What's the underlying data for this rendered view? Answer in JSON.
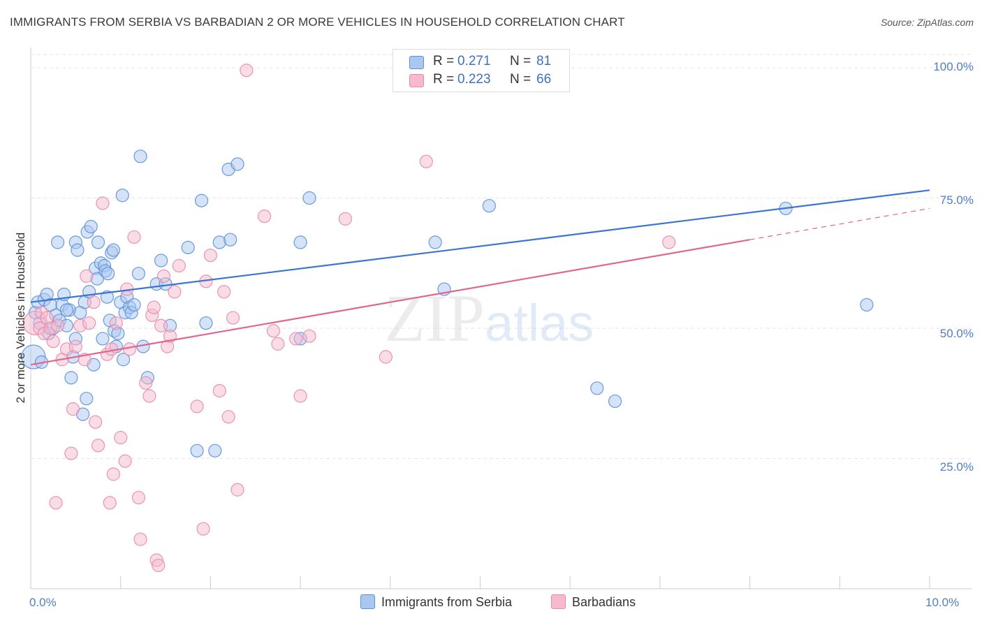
{
  "header": {
    "title": "IMMIGRANTS FROM SERBIA VS BARBADIAN 2 OR MORE VEHICLES IN HOUSEHOLD CORRELATION CHART",
    "source": "Source: ZipAtlas.com"
  },
  "watermark": {
    "zip": "ZIP",
    "atlas": "atlas"
  },
  "colors": {
    "blue_fill": "#aac8ef",
    "blue_stroke": "#5b8fd9",
    "blue_line": "#3c75d1",
    "pink_fill": "#f6b9cd",
    "pink_stroke": "#e889a8",
    "pink_line": "#e06590",
    "tick_text": "#4f7ec7",
    "grid": "#e6e6e6"
  },
  "legend_top": {
    "rows": [
      {
        "r_label": "R =",
        "r_value": "0.271",
        "n_label": "N =",
        "n_value": "81"
      },
      {
        "r_label": "R =",
        "r_value": "0.223",
        "n_label": "N =",
        "n_value": "66"
      }
    ]
  },
  "legend_bottom": {
    "series1": "Immigrants from Serbia",
    "series2": "Barbadians"
  },
  "chart_data": {
    "type": "scatter",
    "title": "IMMIGRANTS FROM SERBIA VS BARBADIAN 2 OR MORE VEHICLES IN HOUSEHOLD CORRELATION CHART",
    "xlabel": "",
    "ylabel": "2 or more Vehicles in Household",
    "xlim": [
      0,
      10
    ],
    "ylim": [
      0,
      105
    ],
    "x_tick_labels": {
      "left": "0.0%",
      "right": "10.0%"
    },
    "y_ticks": [
      {
        "value": 100,
        "label": "100.0%"
      },
      {
        "value": 75,
        "label": "75.0%"
      },
      {
        "value": 50,
        "label": "50.0%"
      },
      {
        "value": 25,
        "label": "25.0%"
      }
    ],
    "x_tick_marks": [
      0,
      1,
      2,
      3,
      4,
      5,
      6,
      7,
      8,
      9,
      10
    ],
    "grid": true,
    "legend": "top-center",
    "series": [
      {
        "name": "Immigrants from Serbia",
        "r": 0.271,
        "n": 81,
        "trend": {
          "x0": 0,
          "y0": 55,
          "x1": 10,
          "y1": 76.5,
          "dashed_from": null
        },
        "points": [
          [
            0.03,
            44.5,
            "L"
          ],
          [
            0.05,
            53
          ],
          [
            0.08,
            55
          ],
          [
            0.12,
            43.5
          ],
          [
            0.15,
            55.5
          ],
          [
            0.18,
            56.5
          ],
          [
            0.2,
            49
          ],
          [
            0.22,
            54.5
          ],
          [
            0.25,
            50
          ],
          [
            0.28,
            52.5
          ],
          [
            0.3,
            66.5
          ],
          [
            0.32,
            51.5
          ],
          [
            0.35,
            54.5
          ],
          [
            0.37,
            56.5
          ],
          [
            0.4,
            50.5
          ],
          [
            0.43,
            53.5
          ],
          [
            0.45,
            40.5
          ],
          [
            0.47,
            44.5
          ],
          [
            0.5,
            66.5
          ],
          [
            0.52,
            65
          ],
          [
            0.55,
            53
          ],
          [
            0.58,
            33.5
          ],
          [
            0.6,
            55
          ],
          [
            0.62,
            36.5
          ],
          [
            0.63,
            68.5
          ],
          [
            0.65,
            57
          ],
          [
            0.67,
            69.5
          ],
          [
            0.7,
            43
          ],
          [
            0.72,
            61.5
          ],
          [
            0.74,
            59.5
          ],
          [
            0.75,
            66.5
          ],
          [
            0.78,
            62.5
          ],
          [
            0.8,
            48
          ],
          [
            0.82,
            62
          ],
          [
            0.83,
            61
          ],
          [
            0.85,
            56
          ],
          [
            0.86,
            60.5
          ],
          [
            0.88,
            51.5
          ],
          [
            0.9,
            64.5
          ],
          [
            0.92,
            65
          ],
          [
            0.93,
            49.5
          ],
          [
            0.95,
            46.5
          ],
          [
            0.97,
            49
          ],
          [
            1.0,
            55
          ],
          [
            1.02,
            75.5
          ],
          [
            1.03,
            44
          ],
          [
            1.05,
            53
          ],
          [
            1.07,
            56
          ],
          [
            1.1,
            54
          ],
          [
            1.12,
            53
          ],
          [
            1.15,
            54.5
          ],
          [
            1.2,
            60.5
          ],
          [
            1.22,
            83
          ],
          [
            1.25,
            46.5
          ],
          [
            1.3,
            40.5
          ],
          [
            1.4,
            58.5
          ],
          [
            1.45,
            63
          ],
          [
            1.5,
            58.5
          ],
          [
            1.55,
            50.5
          ],
          [
            1.75,
            65.5
          ],
          [
            1.85,
            26.5
          ],
          [
            1.9,
            74.5
          ],
          [
            1.95,
            51
          ],
          [
            2.05,
            26.5
          ],
          [
            2.1,
            66.5
          ],
          [
            2.2,
            80.5
          ],
          [
            2.22,
            67
          ],
          [
            2.3,
            81.5
          ],
          [
            3.0,
            66.5
          ],
          [
            3.0,
            48
          ],
          [
            3.1,
            75
          ],
          [
            4.5,
            66.5
          ],
          [
            4.6,
            57.5
          ],
          [
            5.1,
            73.5
          ],
          [
            6.3,
            38.5
          ],
          [
            6.5,
            36
          ],
          [
            8.4,
            73
          ],
          [
            9.3,
            54.5
          ],
          [
            0.1,
            51
          ],
          [
            0.4,
            53.5
          ],
          [
            0.5,
            48
          ]
        ]
      },
      {
        "name": "Barbadians",
        "r": 0.223,
        "n": 66,
        "trend": {
          "x0": 0,
          "y0": 43,
          "x1": 10,
          "y1": 73,
          "dashed_from": 8.0
        },
        "points": [
          [
            0.05,
            51,
            "L"
          ],
          [
            0.1,
            50
          ],
          [
            0.12,
            53
          ],
          [
            0.15,
            49
          ],
          [
            0.18,
            52
          ],
          [
            0.22,
            50
          ],
          [
            0.25,
            47.5
          ],
          [
            0.28,
            16.5
          ],
          [
            0.3,
            50.5
          ],
          [
            0.35,
            44
          ],
          [
            0.4,
            46
          ],
          [
            0.45,
            26
          ],
          [
            0.47,
            34.5
          ],
          [
            0.5,
            46.5
          ],
          [
            0.55,
            50.5
          ],
          [
            0.6,
            44
          ],
          [
            0.62,
            60
          ],
          [
            0.65,
            51
          ],
          [
            0.7,
            55
          ],
          [
            0.72,
            32
          ],
          [
            0.75,
            27.5
          ],
          [
            0.8,
            74
          ],
          [
            0.85,
            45
          ],
          [
            0.88,
            16.5
          ],
          [
            0.9,
            46
          ],
          [
            0.92,
            22
          ],
          [
            0.95,
            51
          ],
          [
            1.0,
            29
          ],
          [
            1.05,
            24.5
          ],
          [
            1.07,
            57.5
          ],
          [
            1.1,
            46
          ],
          [
            1.15,
            67.5
          ],
          [
            1.2,
            17.5
          ],
          [
            1.22,
            9.5
          ],
          [
            1.28,
            39.5
          ],
          [
            1.32,
            37
          ],
          [
            1.35,
            52.5
          ],
          [
            1.37,
            54
          ],
          [
            1.4,
            5.5
          ],
          [
            1.42,
            4.5
          ],
          [
            1.45,
            50.5
          ],
          [
            1.48,
            60
          ],
          [
            1.52,
            46.5
          ],
          [
            1.55,
            48.5
          ],
          [
            1.6,
            57
          ],
          [
            1.65,
            62
          ],
          [
            1.85,
            35
          ],
          [
            1.92,
            11.5
          ],
          [
            1.95,
            59
          ],
          [
            2.0,
            64
          ],
          [
            2.1,
            38
          ],
          [
            2.15,
            57
          ],
          [
            2.2,
            33
          ],
          [
            2.25,
            52
          ],
          [
            2.3,
            19
          ],
          [
            2.4,
            99.5
          ],
          [
            2.6,
            71.5
          ],
          [
            2.7,
            49.5
          ],
          [
            2.75,
            47
          ],
          [
            2.95,
            48
          ],
          [
            3.0,
            37
          ],
          [
            3.1,
            48.5
          ],
          [
            3.5,
            71
          ],
          [
            3.95,
            44.5
          ],
          [
            4.4,
            82
          ],
          [
            7.1,
            66.5
          ]
        ]
      }
    ]
  }
}
